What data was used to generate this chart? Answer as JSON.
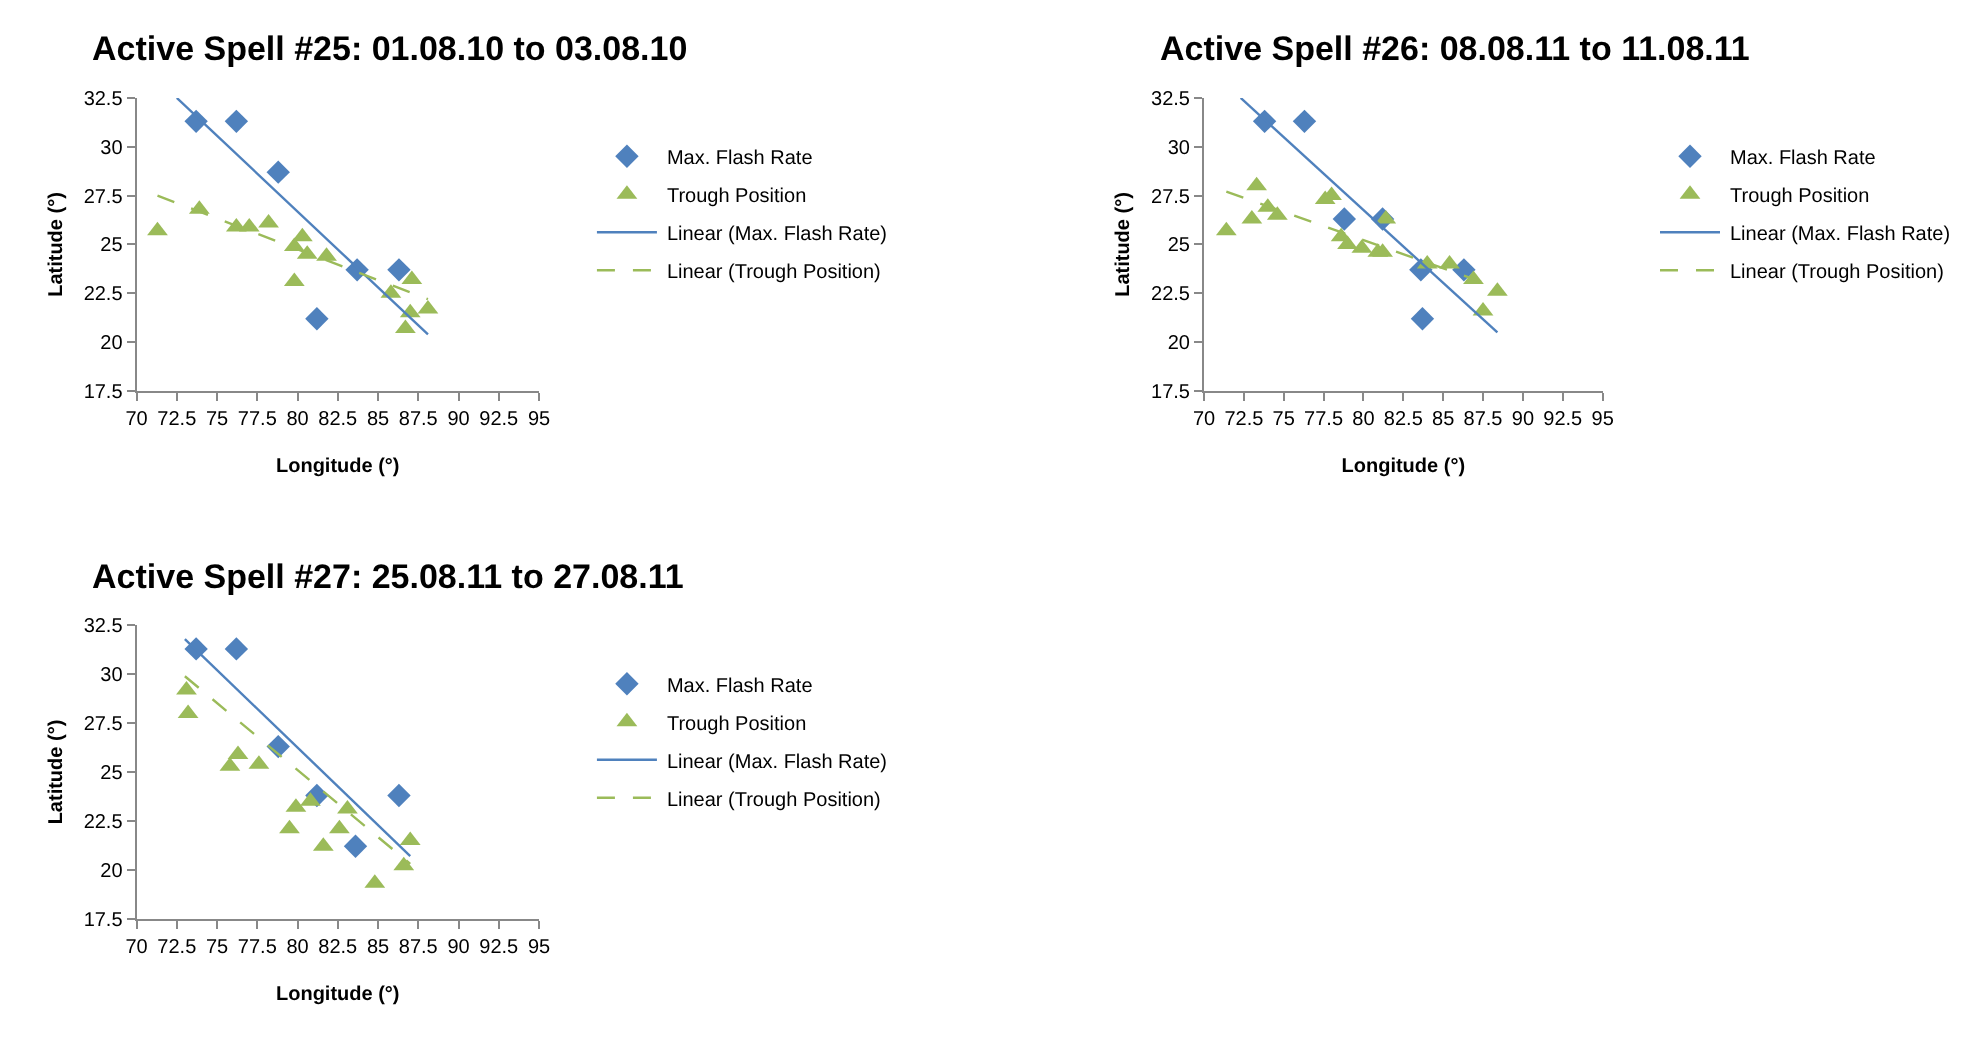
{
  "chart_data": [
    {
      "type": "scatter",
      "title": "Active Spell #25: 01.08.10 to 03.08.10",
      "xlabel": "Longitude (°)",
      "ylabel": "Latitude (°)",
      "xlim": [
        70,
        95
      ],
      "xticks": [
        70,
        72.5,
        75,
        77.5,
        80,
        82.5,
        85,
        87.5,
        90,
        92.5,
        95
      ],
      "ylim": [
        17.5,
        32.5
      ],
      "yticks": [
        17.5,
        20,
        22.5,
        25,
        27.5,
        30,
        32.5
      ],
      "legend": "right",
      "series": [
        {
          "name": "Max. Flash Rate",
          "color": "#4f81bd",
          "marker": "diamond",
          "x": [
            73.7,
            76.2,
            78.8,
            81.2,
            83.7,
            86.3
          ],
          "values": [
            31.3,
            31.3,
            28.7,
            21.2,
            23.7,
            23.7
          ]
        },
        {
          "name": "Trough Position",
          "color": "#9bbb59",
          "marker": "triangle",
          "x": [
            71.3,
            73.9,
            76.2,
            77,
            78.2,
            79.8,
            79.8,
            80.3,
            80.6,
            81.8,
            85.8,
            86.7,
            87,
            87.1,
            88.1
          ],
          "values": [
            25.7,
            26.8,
            25.9,
            25.9,
            26.1,
            23.1,
            24.9,
            25.4,
            24.5,
            24.4,
            22.5,
            20.7,
            21.5,
            23.2,
            21.7
          ]
        },
        {
          "name": "Linear (Max. Flash Rate)",
          "type": "line",
          "color": "#4f81bd",
          "line_style": "solid",
          "x": [
            72.5,
            88.1
          ],
          "values": [
            32.5,
            20.4
          ]
        },
        {
          "name": "Linear (Trough Position)",
          "type": "line",
          "color": "#9bbb59",
          "line_style": "dashed",
          "x": [
            71.3,
            88.1
          ],
          "values": [
            27.5,
            22.2
          ]
        }
      ]
    },
    {
      "type": "scatter",
      "title": "Active Spell #26: 08.08.11 to 11.08.11",
      "xlabel": "Longitude (°)",
      "ylabel": "Latitude (°)",
      "xlim": [
        70,
        95
      ],
      "xticks": [
        70,
        72.5,
        75,
        77.5,
        80,
        82.5,
        85,
        87.5,
        90,
        92.5,
        95
      ],
      "ylim": [
        17.5,
        32.5
      ],
      "yticks": [
        17.5,
        20,
        22.5,
        25,
        27.5,
        30,
        32.5
      ],
      "legend": "right",
      "series": [
        {
          "name": "Max. Flash Rate",
          "color": "#4f81bd",
          "marker": "diamond",
          "x": [
            73.8,
            76.3,
            78.8,
            81.2,
            83.6,
            83.7,
            86.3
          ],
          "values": [
            31.3,
            31.3,
            26.3,
            26.3,
            23.7,
            21.2,
            23.7
          ]
        },
        {
          "name": "Trough Position",
          "color": "#9bbb59",
          "marker": "triangle",
          "x": [
            71.4,
            73,
            73.3,
            74,
            74.6,
            77.6,
            78,
            78.6,
            79,
            79.9,
            80.9,
            81.2,
            81.4,
            84,
            85.4,
            86.9,
            87.5,
            88.4
          ],
          "values": [
            25.7,
            26.3,
            28,
            26.9,
            26.5,
            27.3,
            27.5,
            25.4,
            25,
            24.8,
            24.6,
            24.6,
            26.3,
            24,
            24,
            23.2,
            21.6,
            22.6
          ]
        },
        {
          "name": "Linear (Max. Flash Rate)",
          "type": "line",
          "color": "#4f81bd",
          "line_style": "solid",
          "x": [
            72.3,
            88.4
          ],
          "values": [
            32.5,
            20.5
          ]
        },
        {
          "name": "Linear (Trough Position)",
          "type": "line",
          "color": "#9bbb59",
          "line_style": "dashed",
          "x": [
            71.4,
            88.4
          ],
          "values": [
            27.7,
            22.8
          ]
        }
      ]
    },
    {
      "type": "scatter",
      "title": "Active Spell #27: 25.08.11 to 27.08.11",
      "xlabel": "Longitude (°)",
      "ylabel": "Latitude (°)",
      "xlim": [
        70,
        95
      ],
      "xticks": [
        70,
        72.5,
        75,
        77.5,
        80,
        82.5,
        85,
        87.5,
        90,
        92.5,
        95
      ],
      "ylim": [
        17.5,
        32.5
      ],
      "yticks": [
        17.5,
        20,
        22.5,
        25,
        27.5,
        30,
        32.5
      ],
      "legend": "right",
      "series": [
        {
          "name": "Max. Flash Rate",
          "color": "#4f81bd",
          "marker": "diamond",
          "x": [
            73.7,
            76.2,
            78.8,
            81.2,
            83.6,
            86.3
          ],
          "values": [
            31.3,
            31.3,
            26.3,
            23.8,
            21.2,
            23.8
          ]
        },
        {
          "name": "Trough Position",
          "color": "#9bbb59",
          "marker": "triangle",
          "x": [
            73.1,
            73.2,
            75.8,
            76.3,
            77.6,
            79.5,
            79.9,
            80.8,
            81.6,
            82.6,
            83.1,
            84.8,
            86.6,
            87
          ],
          "values": [
            29.2,
            28,
            25.3,
            25.9,
            25.4,
            22.1,
            23.2,
            23.5,
            21.2,
            22.1,
            23.1,
            19.3,
            20.2,
            21.5
          ]
        },
        {
          "name": "Linear (Max. Flash Rate)",
          "type": "line",
          "color": "#4f81bd",
          "line_style": "solid",
          "x": [
            73,
            87
          ],
          "values": [
            31.8,
            20.7
          ]
        },
        {
          "name": "Linear (Trough Position)",
          "type": "line",
          "color": "#9bbb59",
          "line_style": "dashed",
          "x": [
            73,
            87
          ],
          "values": [
            29.9,
            20.3
          ]
        }
      ]
    }
  ]
}
